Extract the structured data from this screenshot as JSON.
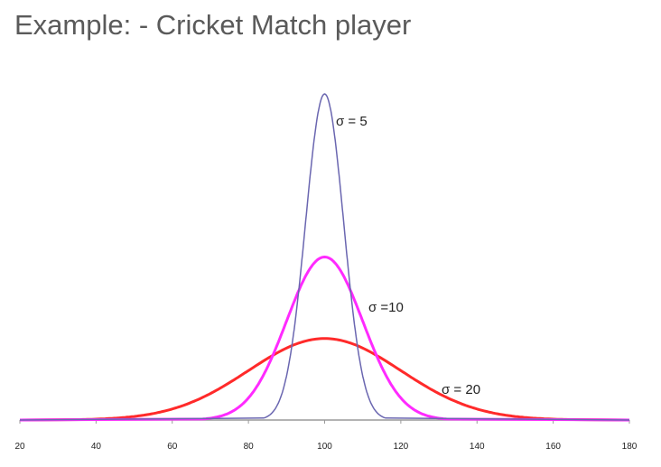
{
  "title": "Example: - Cricket Match player",
  "chart_data": {
    "type": "line",
    "title": "Example: - Cricket Match player",
    "xlabel": "",
    "ylabel": "",
    "xlim": [
      20,
      180
    ],
    "x_ticks": [
      20,
      40,
      60,
      80,
      100,
      120,
      140,
      160,
      180
    ],
    "grid": false,
    "mean": 100,
    "series": [
      {
        "name": "σ = 5",
        "sigma": 5,
        "color": "#6a66b0"
      },
      {
        "name": "σ =10",
        "sigma": 10,
        "color": "#ff2aff"
      },
      {
        "name": "σ = 20",
        "sigma": 20,
        "color": "#ff2a2a"
      }
    ]
  }
}
